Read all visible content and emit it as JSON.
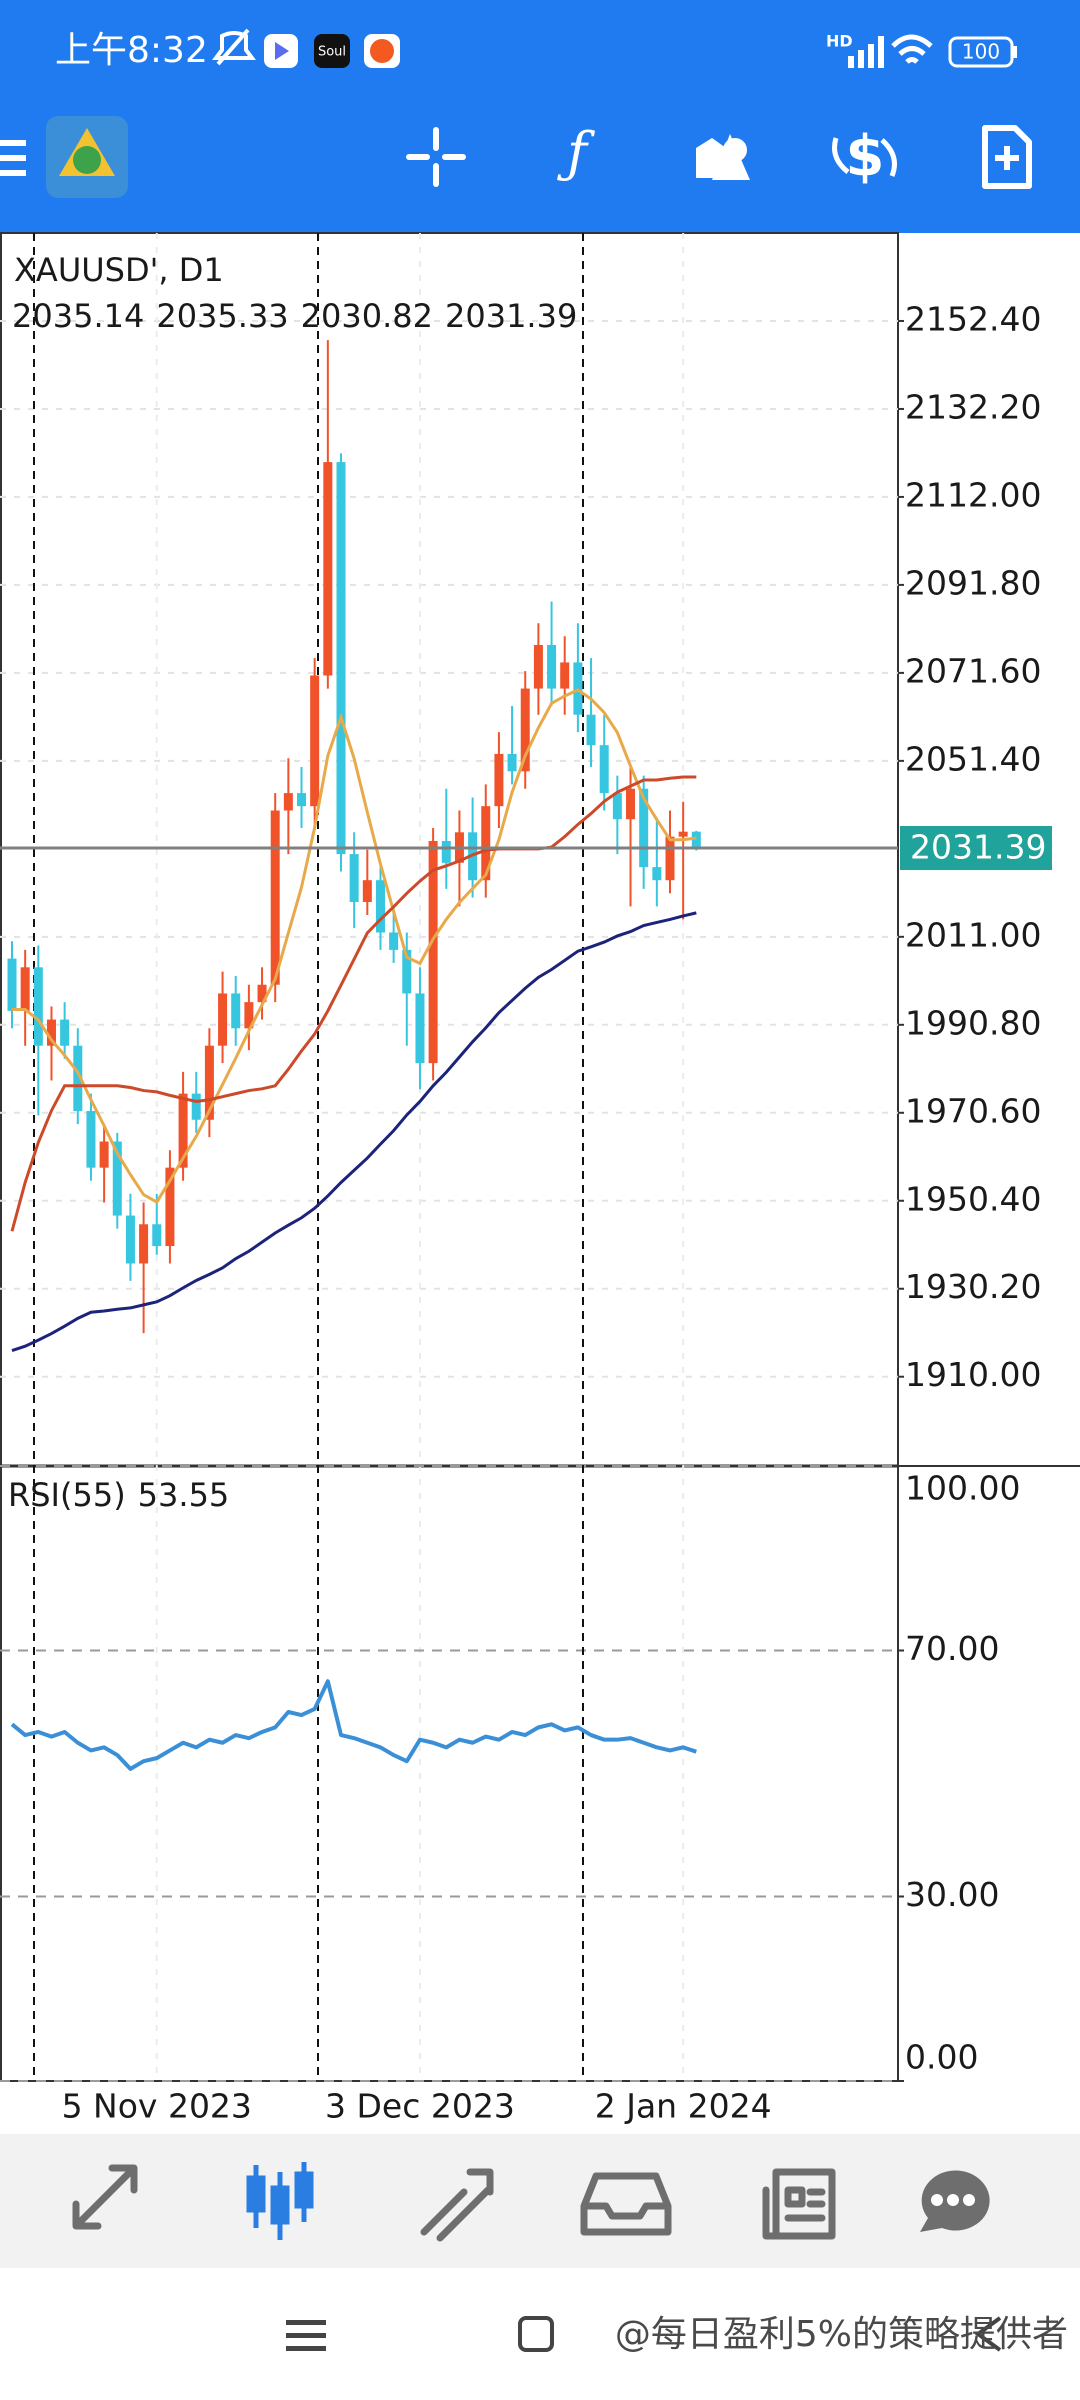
{
  "status_bar": {
    "time": "上午8:32",
    "notification_app": "Soul",
    "network": "HD",
    "battery": "100"
  },
  "watermark": "@每日盈利5%的策略提供者",
  "chart_data": [
    {
      "type": "candlestick",
      "title": "XAUUSD', D1",
      "categories": [
        null,
        null,
        null,
        null,
        null,
        null,
        null,
        null,
        null,
        null,
        null,
        "5 Nov 2023",
        null,
        null,
        null,
        null,
        null,
        null,
        null,
        null,
        null,
        null,
        null,
        null,
        null,
        null,
        null,
        null,
        null,
        null,
        null,
        "3 Dec 2023",
        null,
        null,
        null,
        null,
        null,
        null,
        null,
        null,
        null,
        null,
        null,
        null,
        null,
        null,
        null,
        null,
        null,
        null,
        null,
        "2 Jan 2024",
        null
      ],
      "candles": [
        {
          "open": 2006,
          "high": 2010,
          "low": 1990,
          "close": 1994
        },
        {
          "open": 1994,
          "high": 2008,
          "low": 1986,
          "close": 2004
        },
        {
          "open": 2004,
          "high": 2009,
          "low": 1970,
          "close": 1986
        },
        {
          "open": 1986,
          "high": 1995,
          "low": 1978,
          "close": 1992
        },
        {
          "open": 1992,
          "high": 1996,
          "low": 1983,
          "close": 1986
        },
        {
          "open": 1986,
          "high": 1990,
          "low": 1968,
          "close": 1971
        },
        {
          "open": 1971,
          "high": 1975,
          "low": 1955,
          "close": 1958
        },
        {
          "open": 1958,
          "high": 1968,
          "low": 1950,
          "close": 1964
        },
        {
          "open": 1964,
          "high": 1966,
          "low": 1944,
          "close": 1947
        },
        {
          "open": 1947,
          "high": 1952,
          "low": 1932,
          "close": 1936
        },
        {
          "open": 1936,
          "high": 1950,
          "low": 1920,
          "close": 1945
        },
        {
          "open": 1945,
          "high": 1952,
          "low": 1938,
          "close": 1940
        },
        {
          "open": 1940,
          "high": 1962,
          "low": 1936,
          "close": 1958
        },
        {
          "open": 1958,
          "high": 1980,
          "low": 1955,
          "close": 1975
        },
        {
          "open": 1975,
          "high": 1980,
          "low": 1966,
          "close": 1969
        },
        {
          "open": 1969,
          "high": 1990,
          "low": 1965,
          "close": 1986
        },
        {
          "open": 1986,
          "high": 2003,
          "low": 1982,
          "close": 1998
        },
        {
          "open": 1998,
          "high": 2002,
          "low": 1986,
          "close": 1990
        },
        {
          "open": 1990,
          "high": 2000,
          "low": 1985,
          "close": 1996
        },
        {
          "open": 1996,
          "high": 2004,
          "low": 1992,
          "close": 2000
        },
        {
          "open": 2000,
          "high": 2044,
          "low": 1996,
          "close": 2040
        },
        {
          "open": 2040,
          "high": 2052,
          "low": 2030,
          "close": 2044
        },
        {
          "open": 2044,
          "high": 2050,
          "low": 2036,
          "close": 2041
        },
        {
          "open": 2041,
          "high": 2075,
          "low": 2036,
          "close": 2071
        },
        {
          "open": 2071,
          "high": 2148,
          "low": 2068,
          "close": 2120
        },
        {
          "open": 2120,
          "high": 2122,
          "low": 2026,
          "close": 2030
        },
        {
          "open": 2030,
          "high": 2035,
          "low": 2013,
          "close": 2019
        },
        {
          "open": 2019,
          "high": 2031,
          "low": 2016,
          "close": 2024
        },
        {
          "open": 2024,
          "high": 2027,
          "low": 2008,
          "close": 2012
        },
        {
          "open": 2012,
          "high": 2018,
          "low": 2005,
          "close": 2008
        },
        {
          "open": 2008,
          "high": 2012,
          "low": 1986,
          "close": 1998
        },
        {
          "open": 1998,
          "high": 2004,
          "low": 1976,
          "close": 1982
        },
        {
          "open": 1982,
          "high": 2036,
          "low": 1978,
          "close": 2033
        },
        {
          "open": 2033,
          "high": 2045,
          "low": 2022,
          "close": 2028
        },
        {
          "open": 2028,
          "high": 2040,
          "low": 2018,
          "close": 2035
        },
        {
          "open": 2035,
          "high": 2043,
          "low": 2020,
          "close": 2024
        },
        {
          "open": 2024,
          "high": 2046,
          "low": 2020,
          "close": 2041
        },
        {
          "open": 2041,
          "high": 2058,
          "low": 2036,
          "close": 2053
        },
        {
          "open": 2053,
          "high": 2064,
          "low": 2046,
          "close": 2049
        },
        {
          "open": 2049,
          "high": 2072,
          "low": 2045,
          "close": 2068
        },
        {
          "open": 2068,
          "high": 2083,
          "low": 2062,
          "close": 2078
        },
        {
          "open": 2078,
          "high": 2088,
          "low": 2064,
          "close": 2068
        },
        {
          "open": 2068,
          "high": 2080,
          "low": 2062,
          "close": 2074
        },
        {
          "open": 2074,
          "high": 2083,
          "low": 2058,
          "close": 2062
        },
        {
          "open": 2062,
          "high": 2075,
          "low": 2050,
          "close": 2055
        },
        {
          "open": 2055,
          "high": 2062,
          "low": 2040,
          "close": 2044
        },
        {
          "open": 2044,
          "high": 2048,
          "low": 2030,
          "close": 2038
        },
        {
          "open": 2038,
          "high": 2050,
          "low": 2018,
          "close": 2045
        },
        {
          "open": 2045,
          "high": 2048,
          "low": 2022,
          "close": 2027
        },
        {
          "open": 2027,
          "high": 2038,
          "low": 2018,
          "close": 2024
        },
        {
          "open": 2024,
          "high": 2040,
          "low": 2021,
          "close": 2034
        },
        {
          "open": 2034,
          "high": 2042,
          "low": 2015,
          "close": 2035.14
        },
        {
          "open": 2035.14,
          "high": 2035.33,
          "low": 2030.82,
          "close": 2031.39
        }
      ],
      "up_color": "#f0522a",
      "down_color": "#36c6df",
      "lines": [
        {
          "color": "#e8a94a",
          "values": [
            1994.3,
            1994.3,
            1991.9,
            1987.3,
            1983.8,
            1979.9,
            1973.6,
            1967.6,
            1961.3,
            1956.4,
            1951.8,
            1950.1,
            1955.0,
            1960.2,
            1965.2,
            1971.1,
            1977.1,
            1983.1,
            1989.4,
            1995.4,
            2001.3,
            2011.9,
            2022.4,
            2036.1,
            2052.6,
            2061.4,
            2051.9,
            2039.6,
            2027.7,
            2016.8,
            2006.3,
            2004.9,
            2010.5,
            2015.0,
            2018.9,
            2022.1,
            2025.2,
            2033.3,
            2044.2,
            2052.6,
            2059.0,
            2064.6,
            2066.3,
            2067.7,
            2065.6,
            2062.5,
            2057.9,
            2050.2,
            2042.8,
            2037.9,
            2033.3,
            2033.3,
            2033.7
          ]
        },
        {
          "color": "#cc4a2a",
          "values": [
            1943.4,
            1954.6,
            1963.8,
            1971.1,
            1976.8,
            1976.8,
            1976.8,
            1976.8,
            1976.8,
            1976.4,
            1975.7,
            1975.4,
            1974.6,
            1973.9,
            1973.2,
            1973.6,
            1974.3,
            1975.0,
            1975.7,
            1976.1,
            1976.8,
            1980.6,
            1984.8,
            1988.7,
            1994.0,
            1999.9,
            2005.9,
            2011.9,
            2015.0,
            2017.9,
            2021.0,
            2023.8,
            2026.3,
            2027.3,
            2028.4,
            2029.8,
            2030.9,
            2031.2,
            2031.2,
            2031.2,
            2031.2,
            2031.6,
            2034.0,
            2036.8,
            2039.3,
            2042.1,
            2044.2,
            2045.6,
            2047.0,
            2047.0,
            2047.4,
            2047.7,
            2047.7
          ]
        },
        {
          "color": "#1b237a",
          "values": [
            1916.0,
            1917.0,
            1918.4,
            1919.9,
            1921.6,
            1923.4,
            1924.8,
            1925.1,
            1925.5,
            1925.8,
            1926.5,
            1927.2,
            1928.6,
            1930.4,
            1932.1,
            1933.5,
            1935.0,
            1937.1,
            1938.8,
            1940.9,
            1943.0,
            1944.8,
            1946.5,
            1948.7,
            1951.5,
            1954.6,
            1957.4,
            1960.2,
            1963.4,
            1966.5,
            1970.1,
            1973.2,
            1976.8,
            1979.9,
            1983.4,
            1986.9,
            1990.1,
            1993.6,
            1996.4,
            1999.2,
            2001.7,
            2003.5,
            2005.6,
            2007.7,
            2008.7,
            2009.8,
            2011.2,
            2012.2,
            2013.6,
            2014.3,
            2015.0,
            2015.8,
            2016.5
          ]
        }
      ],
      "price_label_color": "#1fa39a",
      "ylim": [
        1889.5,
        2172.6
      ],
      "yticks": [
        {
          "value": 2152.4,
          "label": "2152.40"
        },
        {
          "value": 2132.2,
          "label": "2132.20"
        },
        {
          "value": 2112,
          "label": "2112.00"
        },
        {
          "value": 2091.8,
          "label": "2091.80"
        },
        {
          "value": 2071.6,
          "label": "2071.60"
        },
        {
          "value": 2051.4,
          "label": "2051.40"
        },
        {
          "value": 2011,
          "label": "2011.00"
        },
        {
          "value": 1990.8,
          "label": "1990.80"
        },
        {
          "value": 1970.6,
          "label": "1970.60"
        },
        {
          "value": 1950.4,
          "label": "1950.40"
        },
        {
          "value": 1930.2,
          "label": "1930.20"
        },
        {
          "value": 1910,
          "label": "1910.00"
        }
      ],
      "grid": true
    },
    {
      "type": "line",
      "title": "RSI(55)",
      "color": "#3a8fd6",
      "values": [
        58,
        56.25,
        56.75,
        56,
        56.75,
        55,
        53.75,
        54.25,
        53,
        50.75,
        52,
        52.5,
        53.75,
        55,
        54.25,
        55.5,
        55,
        56.25,
        55.75,
        56.75,
        57.5,
        60,
        59.5,
        60.5,
        65,
        56.25,
        55.75,
        55,
        54.25,
        53,
        52,
        55.5,
        55,
        54.25,
        55.5,
        55,
        56,
        55.5,
        56.75,
        56.25,
        57.5,
        58,
        57,
        57.5,
        56.25,
        55.5,
        55.5,
        55.75,
        55,
        54.25,
        53.75,
        54.25,
        53.55
      ],
      "ylim": [
        0,
        100
      ],
      "yticks": [
        {
          "value": 100,
          "label": "100.00"
        },
        {
          "value": 70,
          "label": "70.00"
        },
        {
          "value": 30,
          "label": "30.00"
        },
        {
          "value": 0,
          "label": "0.00"
        }
      ],
      "grid": true
    }
  ]
}
